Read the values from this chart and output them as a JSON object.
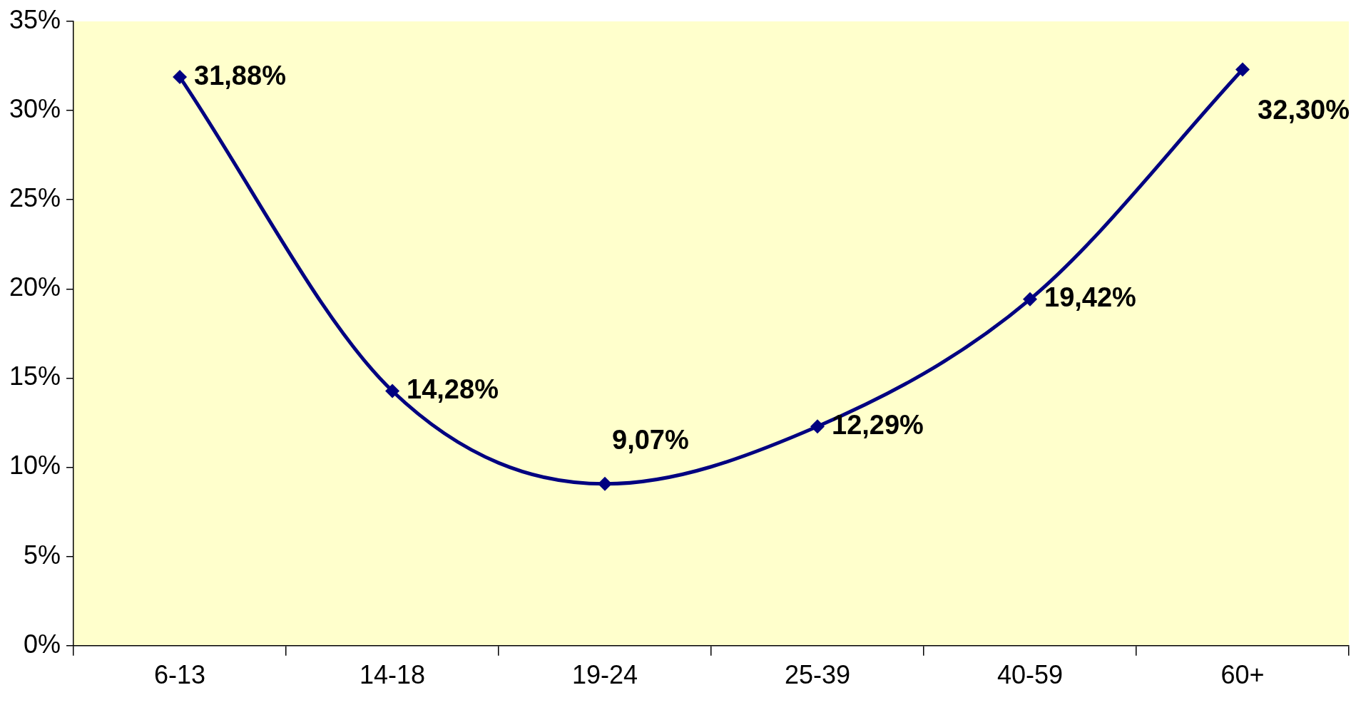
{
  "chart_data": {
    "type": "line",
    "categories": [
      "6-13",
      "14-18",
      "19-24",
      "25-39",
      "40-59",
      "60+"
    ],
    "series": [
      {
        "color": "#000080",
        "values": [
          31.88,
          14.28,
          9.07,
          12.29,
          19.42,
          32.3
        ],
        "value_labels": [
          "31,88%",
          "14,28%",
          "9,07%",
          "12,29%",
          "19,42%",
          "32,30%"
        ]
      }
    ],
    "ylim": [
      0,
      35
    ],
    "yticks": [
      {
        "value": 0,
        "label": "0%"
      },
      {
        "value": 5,
        "label": "5%"
      },
      {
        "value": 10,
        "label": "10%"
      },
      {
        "value": 15,
        "label": "15%"
      },
      {
        "value": 20,
        "label": "20%"
      },
      {
        "value": 25,
        "label": "25%"
      },
      {
        "value": 30,
        "label": "30%"
      },
      {
        "value": 35,
        "label": "35%"
      }
    ],
    "grid": false,
    "legend": false,
    "marker": "diamond",
    "line_style": "solid"
  }
}
